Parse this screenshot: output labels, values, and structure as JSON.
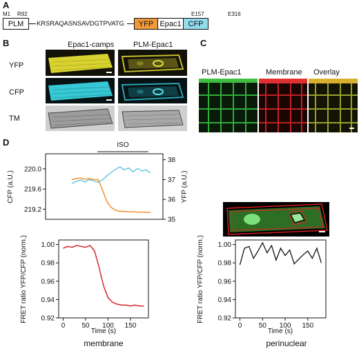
{
  "panels": {
    "a": "A",
    "b": "B",
    "c": "C",
    "d": "D"
  },
  "construct": {
    "m1": "M1",
    "r92": "R92",
    "e157": "E157",
    "e316": "E316",
    "plm": "PLM",
    "linker": "KRSRAQASNSAVDGTPVATG",
    "yfp": "YFP",
    "epac1": "Epac1",
    "cfp": "CFP",
    "colors": {
      "yfp": "#f0993a",
      "cfp": "#93dcec",
      "epac1": "#ffffff"
    }
  },
  "panel_b": {
    "col1": "Epac1-camps",
    "col2": "PLM-Epac1",
    "row1": "YFP",
    "row2": "CFP",
    "row3": "TM"
  },
  "panel_c": {
    "col1": "PLM-Epac1",
    "col2": "Membrane",
    "col3": "Overlay"
  },
  "panel_d": {
    "iso_label": "ISO",
    "membrane_caption": "membrane",
    "perinuclear_caption": "perinuclear",
    "membrane_color": "#d8262b",
    "cfp_color": "#5fc3e0",
    "yfp_color": "#f08a1c"
  },
  "chart_data": [
    {
      "type": "line",
      "x": [
        0,
        10,
        20,
        30,
        40,
        50,
        60,
        70,
        80,
        90,
        100,
        110,
        120,
        130,
        140,
        150,
        160,
        170,
        180
      ],
      "ylabel": "CFP (a.U.)",
      "y2label": "YFP (a.U.)",
      "ylim": [
        219.0,
        220.3
      ],
      "y2lim": [
        35.0,
        38.3
      ],
      "yticks": [
        "220.0",
        "219.6",
        "219.2"
      ],
      "y2ticks": [
        "38",
        "37",
        "36",
        "35"
      ],
      "series": [
        {
          "name": "CFP",
          "axis": "left",
          "values": [
            219.71,
            219.75,
            219.78,
            219.74,
            219.79,
            219.76,
            219.74,
            219.78,
            219.86,
            219.93,
            219.99,
            220.04,
            219.98,
            220.02,
            219.94,
            220.01,
            219.96,
            219.98,
            219.92
          ]
        },
        {
          "name": "YFP",
          "axis": "right",
          "values": [
            37.0,
            37.05,
            37.08,
            37.02,
            37.05,
            37.0,
            37.0,
            36.5,
            35.9,
            35.6,
            35.45,
            35.4,
            35.4,
            35.38,
            35.38,
            35.36,
            35.36,
            35.35,
            35.35
          ]
        }
      ]
    },
    {
      "type": "line",
      "x": [
        0,
        10,
        20,
        30,
        40,
        50,
        60,
        70,
        80,
        90,
        100,
        110,
        120,
        130,
        140,
        150,
        160,
        170,
        180
      ],
      "xlabel": "Time (s)",
      "ylabel": "FRET ratio YFP/CFP (norm.)",
      "ylim": [
        0.92,
        1.005
      ],
      "yticks": [
        "1.00",
        "0.98",
        "0.96",
        "0.94",
        "0.92"
      ],
      "xticks": [
        "0",
        "50",
        "100",
        "150"
      ],
      "series": [
        {
          "name": "membrane",
          "values": [
            0.996,
            0.998,
            0.997,
            0.999,
            0.998,
            0.997,
            0.999,
            0.993,
            0.975,
            0.955,
            0.942,
            0.937,
            0.935,
            0.934,
            0.934,
            0.933,
            0.934,
            0.933,
            0.933
          ]
        }
      ]
    },
    {
      "type": "line",
      "x": [
        0,
        10,
        20,
        30,
        40,
        50,
        60,
        70,
        80,
        90,
        100,
        110,
        120,
        130,
        140,
        150,
        160,
        170,
        180
      ],
      "xlabel": "Time (s)",
      "ylabel": "FRET ratio YFP/CFP (norm.)",
      "ylim": [
        0.92,
        1.005
      ],
      "yticks": [
        "1.00",
        "0.98",
        "0.96",
        "0.94",
        "0.92"
      ],
      "xticks": [
        "0",
        "50",
        "100",
        "150"
      ],
      "series": [
        {
          "name": "perinuclear",
          "values": [
            0.978,
            0.996,
            0.998,
            0.985,
            0.993,
            1.002,
            0.991,
            0.999,
            0.983,
            0.996,
            0.988,
            0.994,
            0.979,
            0.984,
            0.989,
            0.993,
            0.985,
            0.996,
            0.98
          ]
        }
      ]
    }
  ]
}
